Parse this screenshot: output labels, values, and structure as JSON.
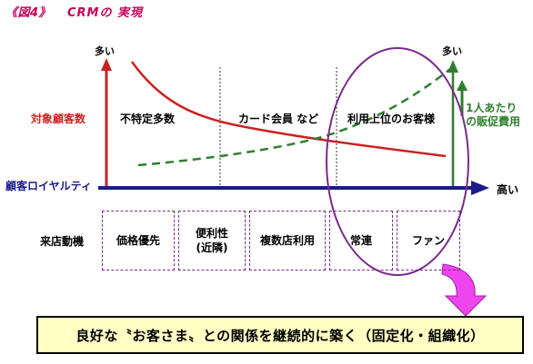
{
  "header": {
    "fig_label": "《図4》",
    "title": "CRMの 実現"
  },
  "axes": {
    "y_top_left": "多い",
    "y_top_right": "多い",
    "y_left_label": "対象顧客数",
    "x_label": "顧客ロイヤルティ",
    "x_end_label": "高い",
    "cost_label_line1": "1人あたり",
    "cost_label_line2": "の販促費用"
  },
  "regions": [
    "不特定多数",
    "カード会員 など",
    "利用上位のお客様"
  ],
  "motives": {
    "label": "来店動機",
    "boxes": [
      {
        "line1": "価格優先",
        "line2": ""
      },
      {
        "line1": "便利性",
        "line2": "(近隣)"
      },
      {
        "line1": "複数店利用",
        "line2": ""
      },
      {
        "line1": "常連",
        "line2": ""
      },
      {
        "line1": "ファン",
        "line2": ""
      }
    ]
  },
  "conclusion": "良好な〝お客さま〟との関係を継続的に築く（固定化・組織化）",
  "colors": {
    "customer_curve": "#cc2020",
    "cost_curve": "#2f7f2f",
    "x_axis": "#1a1a8c",
    "highlight_ellipse": "#7a2a8c",
    "arrow": "#e040e0"
  }
}
